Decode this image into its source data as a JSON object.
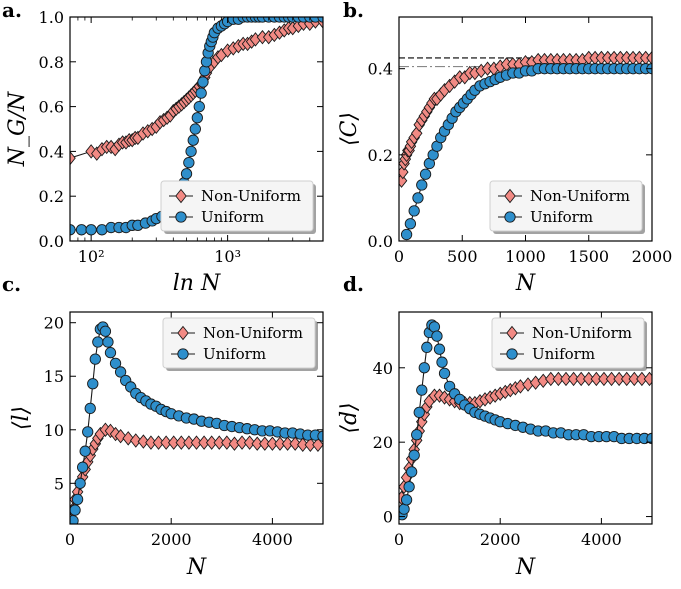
{
  "chart_data": [
    {
      "panel_label": "a.",
      "type": "scatter",
      "xscale": "log",
      "xlim": [
        70,
        5000
      ],
      "ylim": [
        0,
        1.0
      ],
      "xlabel": "ln N",
      "ylabel": "N_G/N",
      "xticks": [
        100,
        1000
      ],
      "xtick_labels": [
        "10²",
        "10³"
      ],
      "yticks": [
        0,
        0.2,
        0.4,
        0.6,
        0.8,
        1.0
      ],
      "ytick_labels": [
        "0.0",
        "0.2",
        "0.4",
        "0.6",
        "0.8",
        "1.0"
      ],
      "legend": [
        "Non-Uniform",
        "Uniform"
      ],
      "legend_position": "bottom-right",
      "series": [
        {
          "name": "Non-Uniform",
          "x": [
            70,
            100,
            110,
            120,
            130,
            140,
            150,
            160,
            170,
            180,
            190,
            200,
            210,
            220,
            240,
            260,
            280,
            300,
            320,
            340,
            360,
            380,
            400,
            420,
            440,
            460,
            480,
            500,
            520,
            540,
            560,
            580,
            600,
            620,
            650,
            680,
            700,
            750,
            800,
            850,
            900,
            1000,
            1100,
            1200,
            1300,
            1400,
            1500,
            1600,
            1800,
            2000,
            2200,
            2400,
            2600,
            2800,
            3000,
            3300,
            3600,
            4000,
            4400,
            5000
          ],
          "y": [
            0.37,
            0.4,
            0.39,
            0.41,
            0.42,
            0.42,
            0.41,
            0.43,
            0.44,
            0.44,
            0.45,
            0.45,
            0.46,
            0.46,
            0.48,
            0.49,
            0.5,
            0.51,
            0.53,
            0.54,
            0.55,
            0.56,
            0.58,
            0.59,
            0.6,
            0.61,
            0.62,
            0.63,
            0.64,
            0.65,
            0.66,
            0.67,
            0.68,
            0.69,
            0.7,
            0.73,
            0.75,
            0.78,
            0.8,
            0.82,
            0.83,
            0.85,
            0.86,
            0.87,
            0.88,
            0.88,
            0.89,
            0.9,
            0.91,
            0.91,
            0.92,
            0.93,
            0.94,
            0.95,
            0.95,
            0.96,
            0.97,
            0.97,
            0.98,
            0.98
          ]
        },
        {
          "name": "Uniform",
          "x": [
            70,
            85,
            100,
            120,
            140,
            160,
            180,
            200,
            220,
            250,
            280,
            300,
            330,
            360,
            400,
            430,
            460,
            480,
            500,
            520,
            540,
            560,
            580,
            600,
            620,
            640,
            660,
            680,
            700,
            720,
            740,
            760,
            780,
            800,
            850,
            900,
            950,
            1000,
            1100,
            1200,
            1300,
            1400,
            1500,
            1600,
            1700,
            1800,
            2000,
            2200,
            2400,
            2600,
            2800,
            3000,
            3300,
            3600,
            4000,
            4400,
            5000
          ],
          "y": [
            0.05,
            0.05,
            0.05,
            0.05,
            0.06,
            0.06,
            0.06,
            0.07,
            0.07,
            0.08,
            0.09,
            0.1,
            0.11,
            0.12,
            0.15,
            0.18,
            0.22,
            0.26,
            0.3,
            0.35,
            0.4,
            0.45,
            0.5,
            0.55,
            0.6,
            0.66,
            0.71,
            0.76,
            0.8,
            0.84,
            0.87,
            0.89,
            0.91,
            0.93,
            0.95,
            0.96,
            0.97,
            0.98,
            0.99,
            0.99,
            1.0,
            1.0,
            1.0,
            1.0,
            1.0,
            1.0,
            1.0,
            1.0,
            1.0,
            1.0,
            1.0,
            1.0,
            1.0,
            1.0,
            1.0,
            1.0,
            1.0
          ]
        }
      ]
    },
    {
      "panel_label": "b.",
      "type": "scatter",
      "xscale": "linear",
      "xlim": [
        0,
        2000
      ],
      "ylim": [
        0,
        0.52
      ],
      "xlabel": "N",
      "ylabel": "⟨C⟩",
      "xticks": [
        0,
        500,
        1000,
        1500,
        2000
      ],
      "xtick_labels": [
        "0",
        "500",
        "1000",
        "1500",
        "2000"
      ],
      "yticks": [
        0,
        0.2,
        0.4
      ],
      "ytick_labels": [
        "0.0",
        "0.2",
        "0.4"
      ],
      "hlines": [
        {
          "y": 0.425,
          "style": "dashed",
          "color": "#000000"
        },
        {
          "y": 0.405,
          "style": "dashdot",
          "color": "#888888"
        }
      ],
      "legend": [
        "Non-Uniform",
        "Uniform"
      ],
      "legend_position": "bottom-right",
      "series": [
        {
          "name": "Non-Uniform",
          "x": [
            20,
            30,
            40,
            50,
            60,
            70,
            80,
            90,
            100,
            120,
            140,
            160,
            180,
            200,
            220,
            240,
            260,
            280,
            300,
            330,
            360,
            400,
            440,
            480,
            520,
            560,
            600,
            650,
            700,
            750,
            800,
            850,
            900,
            950,
            1000,
            1050,
            1100,
            1150,
            1200,
            1250,
            1300,
            1350,
            1400,
            1450,
            1500,
            1550,
            1600,
            1650,
            1700,
            1750,
            1800,
            1850,
            1900,
            1950,
            2000
          ],
          "y": [
            0.14,
            0.16,
            0.18,
            0.19,
            0.2,
            0.21,
            0.21,
            0.22,
            0.23,
            0.24,
            0.25,
            0.27,
            0.28,
            0.29,
            0.3,
            0.31,
            0.32,
            0.33,
            0.33,
            0.34,
            0.35,
            0.36,
            0.37,
            0.38,
            0.38,
            0.39,
            0.39,
            0.395,
            0.4,
            0.4,
            0.405,
            0.41,
            0.41,
            0.41,
            0.415,
            0.415,
            0.42,
            0.42,
            0.42,
            0.42,
            0.42,
            0.42,
            0.42,
            0.42,
            0.425,
            0.425,
            0.425,
            0.425,
            0.425,
            0.425,
            0.425,
            0.425,
            0.425,
            0.425,
            0.425
          ]
        },
        {
          "name": "Uniform",
          "x": [
            60,
            90,
            120,
            150,
            180,
            210,
            240,
            270,
            300,
            330,
            360,
            390,
            420,
            450,
            480,
            510,
            540,
            570,
            600,
            640,
            680,
            720,
            760,
            800,
            850,
            900,
            950,
            1000,
            1050,
            1100,
            1150,
            1200,
            1250,
            1300,
            1350,
            1400,
            1450,
            1500,
            1550,
            1600,
            1650,
            1700,
            1750,
            1800,
            1850,
            1900,
            1950,
            2000
          ],
          "y": [
            0.015,
            0.04,
            0.07,
            0.1,
            0.13,
            0.155,
            0.18,
            0.2,
            0.22,
            0.24,
            0.255,
            0.27,
            0.285,
            0.3,
            0.31,
            0.32,
            0.33,
            0.34,
            0.35,
            0.36,
            0.365,
            0.37,
            0.375,
            0.38,
            0.385,
            0.39,
            0.39,
            0.395,
            0.395,
            0.4,
            0.4,
            0.4,
            0.4,
            0.4,
            0.4,
            0.4,
            0.4,
            0.4,
            0.4,
            0.4,
            0.4,
            0.4,
            0.4,
            0.4,
            0.4,
            0.4,
            0.4,
            0.4
          ]
        }
      ]
    },
    {
      "panel_label": "c.",
      "type": "scatter",
      "xscale": "linear",
      "xlim": [
        0,
        5000
      ],
      "ylim": [
        1.2,
        21
      ],
      "xlabel": "N",
      "ylabel": "⟨l⟩",
      "xticks": [
        0,
        2000,
        4000
      ],
      "xtick_labels": [
        "0",
        "2000",
        "4000"
      ],
      "yticks": [
        5,
        10,
        15,
        20
      ],
      "ytick_labels": [
        "5",
        "10",
        "15",
        "20"
      ],
      "legend": [
        "Non-Uniform",
        "Uniform"
      ],
      "legend_position": "top-right",
      "series": [
        {
          "name": "Non-Uniform",
          "x": [
            50,
            100,
            150,
            200,
            250,
            300,
            350,
            400,
            450,
            500,
            550,
            600,
            700,
            800,
            900,
            1000,
            1150,
            1300,
            1450,
            1600,
            1750,
            1900,
            2050,
            2200,
            2350,
            2500,
            2650,
            2800,
            2950,
            3100,
            3250,
            3400,
            3550,
            3700,
            3850,
            4000,
            4150,
            4300,
            4450,
            4600,
            4750,
            4900
          ],
          "y": [
            2.5,
            3.5,
            4.2,
            5.0,
            5.6,
            6.3,
            7.0,
            7.6,
            8.2,
            8.7,
            9.2,
            9.6,
            10.0,
            9.9,
            9.6,
            9.4,
            9.2,
            9.0,
            8.9,
            8.8,
            8.8,
            8.8,
            8.8,
            8.8,
            8.8,
            8.8,
            8.8,
            8.8,
            8.8,
            8.8,
            8.7,
            8.8,
            8.8,
            8.7,
            8.7,
            8.7,
            8.7,
            8.7,
            8.7,
            8.6,
            8.6,
            8.6
          ]
        },
        {
          "name": "Uniform",
          "x": [
            60,
            100,
            150,
            200,
            250,
            300,
            350,
            400,
            450,
            500,
            550,
            600,
            650,
            700,
            750,
            800,
            900,
            1000,
            1100,
            1200,
            1300,
            1400,
            1500,
            1600,
            1700,
            1800,
            1900,
            2000,
            2150,
            2300,
            2450,
            2600,
            2750,
            2900,
            3050,
            3200,
            3350,
            3500,
            3650,
            3800,
            3950,
            4100,
            4250,
            4400,
            4550,
            4700,
            4850,
            5000
          ],
          "y": [
            1.5,
            2.5,
            3.5,
            5.0,
            6.5,
            8.0,
            9.8,
            12.0,
            14.3,
            16.6,
            18.2,
            19.4,
            19.6,
            19.2,
            18.2,
            17.2,
            16.2,
            15.4,
            14.6,
            14.0,
            13.4,
            13.0,
            12.7,
            12.4,
            12.2,
            11.9,
            11.7,
            11.5,
            11.3,
            11.1,
            11.0,
            10.8,
            10.7,
            10.6,
            10.4,
            10.3,
            10.2,
            10.1,
            10.0,
            9.9,
            9.9,
            9.8,
            9.7,
            9.7,
            9.6,
            9.5,
            9.5,
            9.4
          ]
        }
      ]
    },
    {
      "panel_label": "d.",
      "type": "scatter",
      "xscale": "linear",
      "xlim": [
        0,
        5000
      ],
      "ylim": [
        -2,
        55
      ],
      "xlabel": "N",
      "ylabel": "⟨d⟩",
      "xticks": [
        0,
        2000,
        4000
      ],
      "xtick_labels": [
        "0",
        "2000",
        "4000"
      ],
      "yticks": [
        0,
        20,
        40
      ],
      "ytick_labels": [
        "0",
        "20",
        "40"
      ],
      "legend": [
        "Non-Uniform",
        "Uniform"
      ],
      "legend_position": "top-right",
      "series": [
        {
          "name": "Non-Uniform",
          "x": [
            50,
            100,
            150,
            200,
            250,
            300,
            350,
            400,
            450,
            500,
            550,
            600,
            700,
            800,
            900,
            1000,
            1100,
            1200,
            1300,
            1400,
            1500,
            1600,
            1700,
            1800,
            1900,
            2000,
            2100,
            2200,
            2300,
            2400,
            2550,
            2700,
            2850,
            3000,
            3150,
            3300,
            3450,
            3600,
            3750,
            3900,
            4050,
            4200,
            4350,
            4500,
            4650,
            4800,
            4950
          ],
          "y": [
            5.0,
            8.0,
            10.5,
            13.0,
            15.5,
            18.0,
            20.5,
            23.0,
            25.5,
            27.5,
            29.5,
            31.0,
            32.5,
            32.5,
            32.0,
            31.5,
            31.0,
            30.5,
            30.5,
            30.5,
            30.5,
            31.0,
            31.5,
            32.0,
            32.5,
            33.0,
            33.5,
            34.0,
            34.5,
            35.0,
            35.5,
            36.0,
            36.5,
            37.0,
            37.0,
            37.0,
            37.0,
            37.0,
            37.0,
            37.0,
            37.0,
            37.0,
            37.0,
            37.0,
            37.0,
            37.0,
            37.0
          ]
        },
        {
          "name": "Uniform",
          "x": [
            60,
            100,
            150,
            200,
            250,
            300,
            350,
            400,
            450,
            500,
            550,
            600,
            650,
            700,
            750,
            800,
            850,
            900,
            1000,
            1100,
            1200,
            1300,
            1400,
            1500,
            1600,
            1700,
            1800,
            1900,
            2000,
            2150,
            2300,
            2450,
            2600,
            2750,
            2900,
            3050,
            3200,
            3350,
            3500,
            3650,
            3800,
            3950,
            4100,
            4250,
            4400,
            4550,
            4700,
            4850,
            5000
          ],
          "y": [
            0.5,
            2.0,
            4.5,
            8.0,
            12.0,
            16.5,
            22.0,
            28.0,
            34.0,
            40.0,
            45.5,
            49.5,
            51.5,
            51.0,
            48.5,
            45.0,
            41.5,
            38.5,
            35.0,
            33.0,
            31.5,
            30.0,
            29.0,
            28.0,
            27.5,
            27.0,
            26.5,
            26.0,
            25.5,
            25.0,
            24.5,
            24.0,
            23.5,
            23.0,
            23.0,
            22.5,
            22.5,
            22.0,
            22.0,
            22.0,
            21.5,
            21.5,
            21.5,
            21.5,
            21.0,
            21.0,
            21.0,
            21.0,
            21.0
          ]
        }
      ]
    }
  ],
  "style": {
    "nonuniform_fill": "#f28a84",
    "uniform_fill": "#2e8fcc",
    "marker_edge": "#1a1a1a",
    "line_color": "#1a1a1a"
  }
}
